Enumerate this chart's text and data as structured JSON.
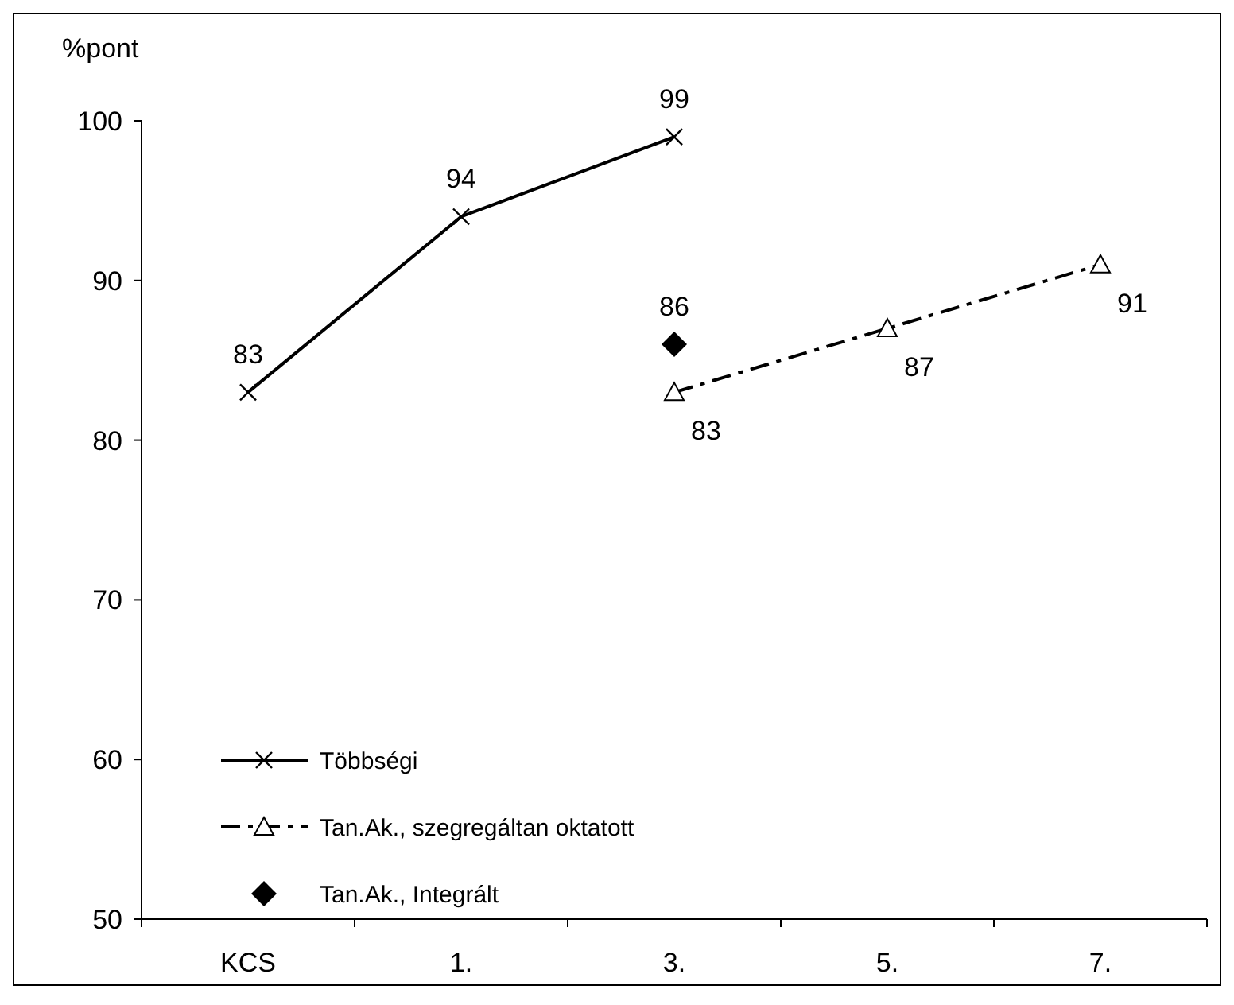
{
  "chart_data": {
    "type": "line",
    "ylabel": "%pont",
    "categories": [
      "KCS",
      "1.",
      "3.",
      "5.",
      "7."
    ],
    "series": [
      {
        "name": "Többségi",
        "color": "#000000",
        "values": [
          83,
          94,
          99,
          null,
          null
        ],
        "marker": "cross",
        "line_style": "solid"
      },
      {
        "name": "Tan.Ak., szegregáltan oktatott",
        "color": "#000000",
        "values": [
          null,
          null,
          83,
          87,
          91
        ],
        "marker": "triangle",
        "line_style": "dashed"
      },
      {
        "name": "Tan.Ak., Integrált",
        "type": "scatter",
        "color": "#000000",
        "values": [
          null,
          null,
          86,
          null,
          null
        ],
        "marker": "diamond"
      }
    ],
    "ylim": [
      50,
      100
    ],
    "yticks": [
      50,
      60,
      70,
      80,
      90,
      100
    ],
    "data_labels": true,
    "legend": "bottom left",
    "grid": false
  }
}
